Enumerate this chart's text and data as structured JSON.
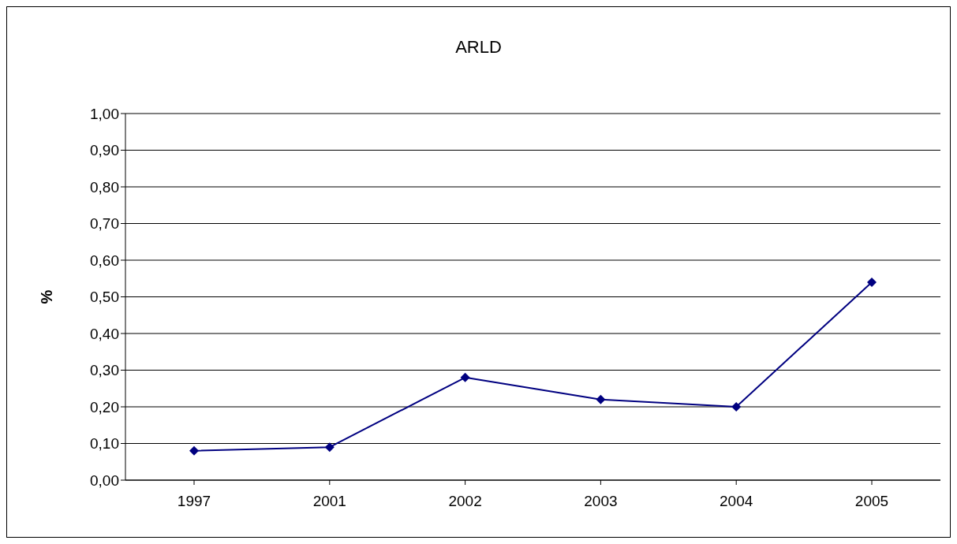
{
  "chart_data": {
    "type": "line",
    "title": "ARLD",
    "ylabel": "%",
    "categories": [
      "1997",
      "2001",
      "2002",
      "2003",
      "2004",
      "2005"
    ],
    "series": [
      {
        "color": "#000080",
        "values": [
          0.08,
          0.09,
          0.28,
          0.22,
          0.2,
          0.54
        ]
      }
    ],
    "ylim": [
      0,
      1
    ],
    "yticks": [
      {
        "value": 0,
        "label": "0,00"
      },
      {
        "value": 0.1,
        "label": "0,10"
      },
      {
        "value": 0.2,
        "label": "0,20"
      },
      {
        "value": 0.3,
        "label": "0,30"
      },
      {
        "value": 0.4,
        "label": "0,40"
      },
      {
        "value": 0.5,
        "label": "0,50"
      },
      {
        "value": 0.6,
        "label": "0,60"
      },
      {
        "value": 0.7,
        "label": "0,70"
      },
      {
        "value": 0.8,
        "label": "0,80"
      },
      {
        "value": 0.9,
        "label": "0,90"
      },
      {
        "value": 1,
        "label": "1,00"
      }
    ],
    "grid": "y",
    "marker": "diamond",
    "line_style": "solid",
    "legend": false
  }
}
